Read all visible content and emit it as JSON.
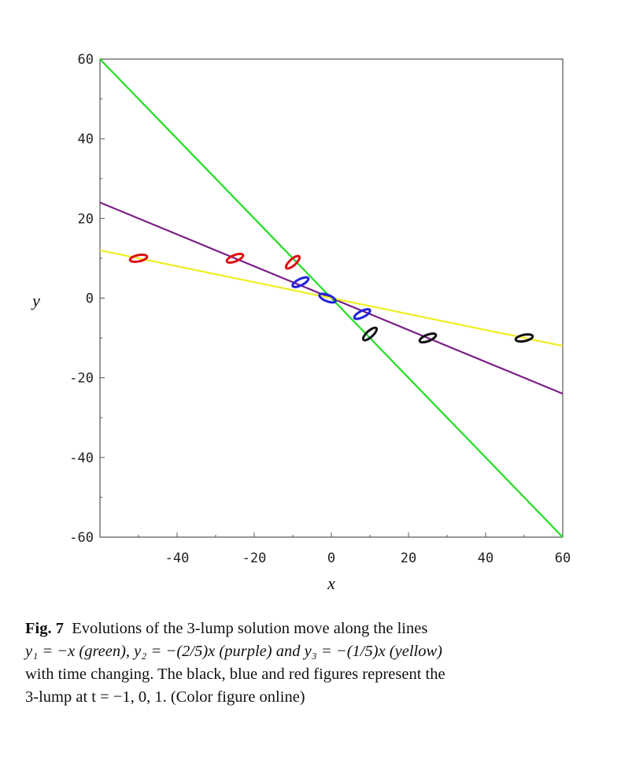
{
  "chart_data": {
    "type": "line",
    "xlabel": "x",
    "ylabel": "y",
    "xlim": [
      -60,
      60
    ],
    "ylim": [
      -60,
      60
    ],
    "x_ticks": [
      "-40",
      "-20",
      "0",
      "20",
      "40",
      "60"
    ],
    "x_tick_values": [
      -40,
      -20,
      0,
      20,
      40,
      60
    ],
    "y_ticks": [
      "60",
      "40",
      "20",
      "0",
      "-20",
      "-40",
      "-60"
    ],
    "y_tick_values": [
      60,
      40,
      20,
      0,
      -20,
      -40,
      -60
    ],
    "series": [
      {
        "slope": -1,
        "color": "#22dd22",
        "x": [
          -60,
          60
        ],
        "y": [
          60,
          -60
        ]
      },
      {
        "slope": -0.4,
        "color": "#7a1f86",
        "x": [
          -60,
          60
        ],
        "y": [
          24,
          -24
        ]
      },
      {
        "slope": -0.2,
        "color": "#eeee22",
        "x": [
          -60,
          60
        ],
        "y": [
          12,
          -12
        ]
      }
    ],
    "lumps": [
      {
        "color": "#dd1111",
        "points": [
          [
            -50,
            10
          ],
          [
            -25,
            10
          ],
          [
            -10,
            9
          ]
        ]
      },
      {
        "color": "#2222dd",
        "points": [
          [
            -8,
            4
          ],
          [
            -1,
            0
          ],
          [
            8,
            -4
          ]
        ]
      },
      {
        "color": "#111111",
        "points": [
          [
            10,
            -9
          ],
          [
            25,
            -10
          ],
          [
            50,
            -10
          ]
        ]
      }
    ]
  },
  "caption": {
    "fig_label": "Fig. 7",
    "text_part1": "Evolutions of the 3-lump solution move along the lines",
    "text_part2": "y₁ = −x (green), y₂ = −(2/5)x (purple) and y₃ = −(1/5)x (yellow)",
    "text_part3": "with time changing. The black, blue and red figures represent the",
    "text_part4": "3-lump at t = −1, 0, 1. (Color figure online)"
  }
}
